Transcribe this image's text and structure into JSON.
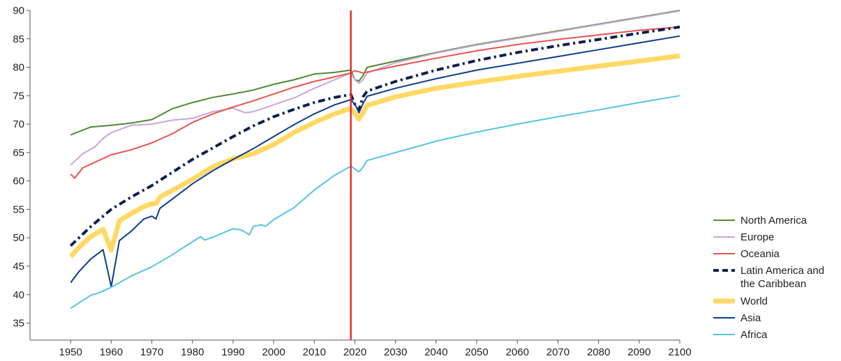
{
  "chart_data": {
    "type": "line",
    "title": "",
    "xlabel": "",
    "ylabel": "",
    "xlim": [
      1940,
      2100
    ],
    "ylim": [
      32,
      90
    ],
    "x_ticks": [
      1950,
      1960,
      1970,
      1980,
      1990,
      2000,
      2010,
      2020,
      2030,
      2040,
      2050,
      2060,
      2070,
      2080,
      2090,
      2100
    ],
    "y_ticks": [
      35,
      40,
      45,
      50,
      55,
      60,
      65,
      70,
      75,
      80,
      85,
      90
    ],
    "vertical_marker": {
      "x": 2019,
      "color": "#e03131"
    },
    "grid": false,
    "legend_position": "right",
    "series": [
      {
        "name": "North America",
        "color": "#4d8a33",
        "style": "solid",
        "points": [
          [
            1950,
            68.1
          ],
          [
            1955,
            69.5
          ],
          [
            1960,
            69.8
          ],
          [
            1965,
            70.2
          ],
          [
            1970,
            70.8
          ],
          [
            1975,
            72.7
          ],
          [
            1980,
            73.8
          ],
          [
            1985,
            74.7
          ],
          [
            1990,
            75.3
          ],
          [
            1995,
            76.0
          ],
          [
            2000,
            77.0
          ],
          [
            2005,
            77.8
          ],
          [
            2010,
            78.8
          ],
          [
            2015,
            79.1
          ],
          [
            2019,
            79.5
          ],
          [
            2020,
            77.8
          ],
          [
            2021,
            77.6
          ],
          [
            2022,
            78.5
          ],
          [
            2023,
            80.0
          ],
          [
            2030,
            81.1
          ],
          [
            2040,
            82.6
          ],
          [
            2050,
            84.0
          ],
          [
            2060,
            85.2
          ],
          [
            2070,
            86.4
          ],
          [
            2080,
            87.6
          ],
          [
            2090,
            88.8
          ],
          [
            2100,
            90.0
          ]
        ]
      },
      {
        "name": "Europe",
        "color": "#c9a6d6",
        "style": "solid",
        "points": [
          [
            1950,
            62.8
          ],
          [
            1953,
            64.8
          ],
          [
            1956,
            66.0
          ],
          [
            1958,
            67.5
          ],
          [
            1960,
            68.5
          ],
          [
            1965,
            69.8
          ],
          [
            1970,
            70.0
          ],
          [
            1975,
            70.7
          ],
          [
            1980,
            71.0
          ],
          [
            1985,
            72.2
          ],
          [
            1990,
            72.8
          ],
          [
            1993,
            72.0
          ],
          [
            1995,
            72.2
          ],
          [
            2000,
            73.4
          ],
          [
            2005,
            74.6
          ],
          [
            2010,
            76.3
          ],
          [
            2015,
            77.8
          ],
          [
            2019,
            79.0
          ],
          [
            2020,
            77.8
          ],
          [
            2021,
            77.2
          ],
          [
            2022,
            77.8
          ],
          [
            2023,
            79.0
          ],
          [
            2030,
            80.8
          ],
          [
            2040,
            82.5
          ],
          [
            2050,
            83.9
          ],
          [
            2060,
            85.1
          ],
          [
            2070,
            86.3
          ],
          [
            2080,
            87.5
          ],
          [
            2090,
            88.7
          ],
          [
            2100,
            89.9
          ]
        ]
      },
      {
        "name": "Oceania",
        "color": "#e8534f",
        "style": "solid",
        "points": [
          [
            1950,
            61.2
          ],
          [
            1951,
            60.5
          ],
          [
            1953,
            62.3
          ],
          [
            1956,
            63.3
          ],
          [
            1960,
            64.6
          ],
          [
            1965,
            65.5
          ],
          [
            1970,
            66.7
          ],
          [
            1975,
            68.3
          ],
          [
            1980,
            70.3
          ],
          [
            1985,
            71.8
          ],
          [
            1990,
            73.0
          ],
          [
            1995,
            74.1
          ],
          [
            2000,
            75.3
          ],
          [
            2005,
            76.5
          ],
          [
            2010,
            77.5
          ],
          [
            2015,
            78.3
          ],
          [
            2019,
            79.0
          ],
          [
            2020,
            79.4
          ],
          [
            2021,
            79.2
          ],
          [
            2022,
            79.0
          ],
          [
            2030,
            80.2
          ],
          [
            2040,
            81.6
          ],
          [
            2050,
            82.9
          ],
          [
            2060,
            84.0
          ],
          [
            2070,
            84.9
          ],
          [
            2080,
            85.7
          ],
          [
            2090,
            86.5
          ],
          [
            2100,
            87.1
          ]
        ]
      },
      {
        "name": "Latin America and the Caribbean",
        "color": "#0d1f4d",
        "style": "dashdot",
        "points": [
          [
            1950,
            48.6
          ],
          [
            1955,
            52.0
          ],
          [
            1960,
            55.0
          ],
          [
            1965,
            57.2
          ],
          [
            1970,
            59.2
          ],
          [
            1975,
            61.5
          ],
          [
            1980,
            63.8
          ],
          [
            1985,
            65.8
          ],
          [
            1990,
            67.8
          ],
          [
            1995,
            69.7
          ],
          [
            2000,
            71.3
          ],
          [
            2005,
            72.6
          ],
          [
            2010,
            73.8
          ],
          [
            2015,
            74.7
          ],
          [
            2019,
            75.2
          ],
          [
            2020,
            73.5
          ],
          [
            2021,
            72.5
          ],
          [
            2022,
            74.8
          ],
          [
            2023,
            75.8
          ],
          [
            2030,
            77.5
          ],
          [
            2040,
            79.5
          ],
          [
            2050,
            81.2
          ],
          [
            2060,
            82.6
          ],
          [
            2070,
            83.8
          ],
          [
            2080,
            84.9
          ],
          [
            2090,
            86.0
          ],
          [
            2100,
            87.1
          ]
        ]
      },
      {
        "name": "World",
        "color": "#ffd966",
        "style": "thick",
        "points": [
          [
            1950,
            46.7
          ],
          [
            1953,
            49.0
          ],
          [
            1955,
            50.2
          ],
          [
            1958,
            51.5
          ],
          [
            1960,
            47.8
          ],
          [
            1962,
            53.0
          ],
          [
            1965,
            54.3
          ],
          [
            1968,
            55.5
          ],
          [
            1970,
            56.0
          ],
          [
            1971,
            56.0
          ],
          [
            1972,
            57.2
          ],
          [
            1975,
            58.3
          ],
          [
            1980,
            60.3
          ],
          [
            1985,
            62.5
          ],
          [
            1990,
            63.9
          ],
          [
            1995,
            64.8
          ],
          [
            2000,
            66.4
          ],
          [
            2005,
            68.5
          ],
          [
            2010,
            70.3
          ],
          [
            2015,
            71.8
          ],
          [
            2019,
            72.8
          ],
          [
            2020,
            71.9
          ],
          [
            2021,
            70.9
          ],
          [
            2022,
            72.0
          ],
          [
            2023,
            73.3
          ],
          [
            2030,
            74.8
          ],
          [
            2040,
            76.3
          ],
          [
            2050,
            77.4
          ],
          [
            2060,
            78.4
          ],
          [
            2070,
            79.3
          ],
          [
            2080,
            80.2
          ],
          [
            2090,
            81.1
          ],
          [
            2100,
            82.0
          ]
        ]
      },
      {
        "name": "Asia",
        "color": "#0c3c8c",
        "style": "solid",
        "points": [
          [
            1950,
            42.1
          ],
          [
            1952,
            44.0
          ],
          [
            1955,
            46.3
          ],
          [
            1958,
            47.9
          ],
          [
            1960,
            41.4
          ],
          [
            1962,
            49.5
          ],
          [
            1965,
            51.2
          ],
          [
            1968,
            53.3
          ],
          [
            1970,
            53.8
          ],
          [
            1971,
            53.3
          ],
          [
            1972,
            55.2
          ],
          [
            1975,
            56.8
          ],
          [
            1980,
            59.5
          ],
          [
            1985,
            61.8
          ],
          [
            1990,
            63.8
          ],
          [
            1995,
            65.7
          ],
          [
            2000,
            67.8
          ],
          [
            2005,
            69.9
          ],
          [
            2010,
            71.8
          ],
          [
            2015,
            73.4
          ],
          [
            2019,
            74.3
          ],
          [
            2020,
            73.5
          ],
          [
            2021,
            72.0
          ],
          [
            2022,
            73.6
          ],
          [
            2023,
            74.9
          ],
          [
            2030,
            76.3
          ],
          [
            2040,
            78.0
          ],
          [
            2050,
            79.5
          ],
          [
            2060,
            80.7
          ],
          [
            2070,
            81.9
          ],
          [
            2080,
            83.1
          ],
          [
            2090,
            84.3
          ],
          [
            2100,
            85.5
          ]
        ]
      },
      {
        "name": "Africa",
        "color": "#55c5e0",
        "style": "solid",
        "points": [
          [
            1950,
            37.6
          ],
          [
            1955,
            39.9
          ],
          [
            1957,
            40.3
          ],
          [
            1960,
            41.3
          ],
          [
            1965,
            43.3
          ],
          [
            1970,
            44.9
          ],
          [
            1975,
            47.0
          ],
          [
            1980,
            49.3
          ],
          [
            1982,
            50.2
          ],
          [
            1983,
            49.6
          ],
          [
            1985,
            50.1
          ],
          [
            1988,
            51.0
          ],
          [
            1990,
            51.6
          ],
          [
            1992,
            51.4
          ],
          [
            1993,
            51.0
          ],
          [
            1994,
            50.5
          ],
          [
            1995,
            52.0
          ],
          [
            1997,
            52.3
          ],
          [
            1998,
            52.0
          ],
          [
            2000,
            53.2
          ],
          [
            2005,
            55.3
          ],
          [
            2010,
            58.4
          ],
          [
            2015,
            61.0
          ],
          [
            2019,
            62.6
          ],
          [
            2020,
            62.1
          ],
          [
            2021,
            61.6
          ],
          [
            2022,
            62.4
          ],
          [
            2023,
            63.6
          ],
          [
            2030,
            65.0
          ],
          [
            2040,
            67.0
          ],
          [
            2050,
            68.6
          ],
          [
            2060,
            70.0
          ],
          [
            2070,
            71.3
          ],
          [
            2080,
            72.5
          ],
          [
            2090,
            73.8
          ],
          [
            2100,
            75.0
          ]
        ]
      }
    ]
  }
}
